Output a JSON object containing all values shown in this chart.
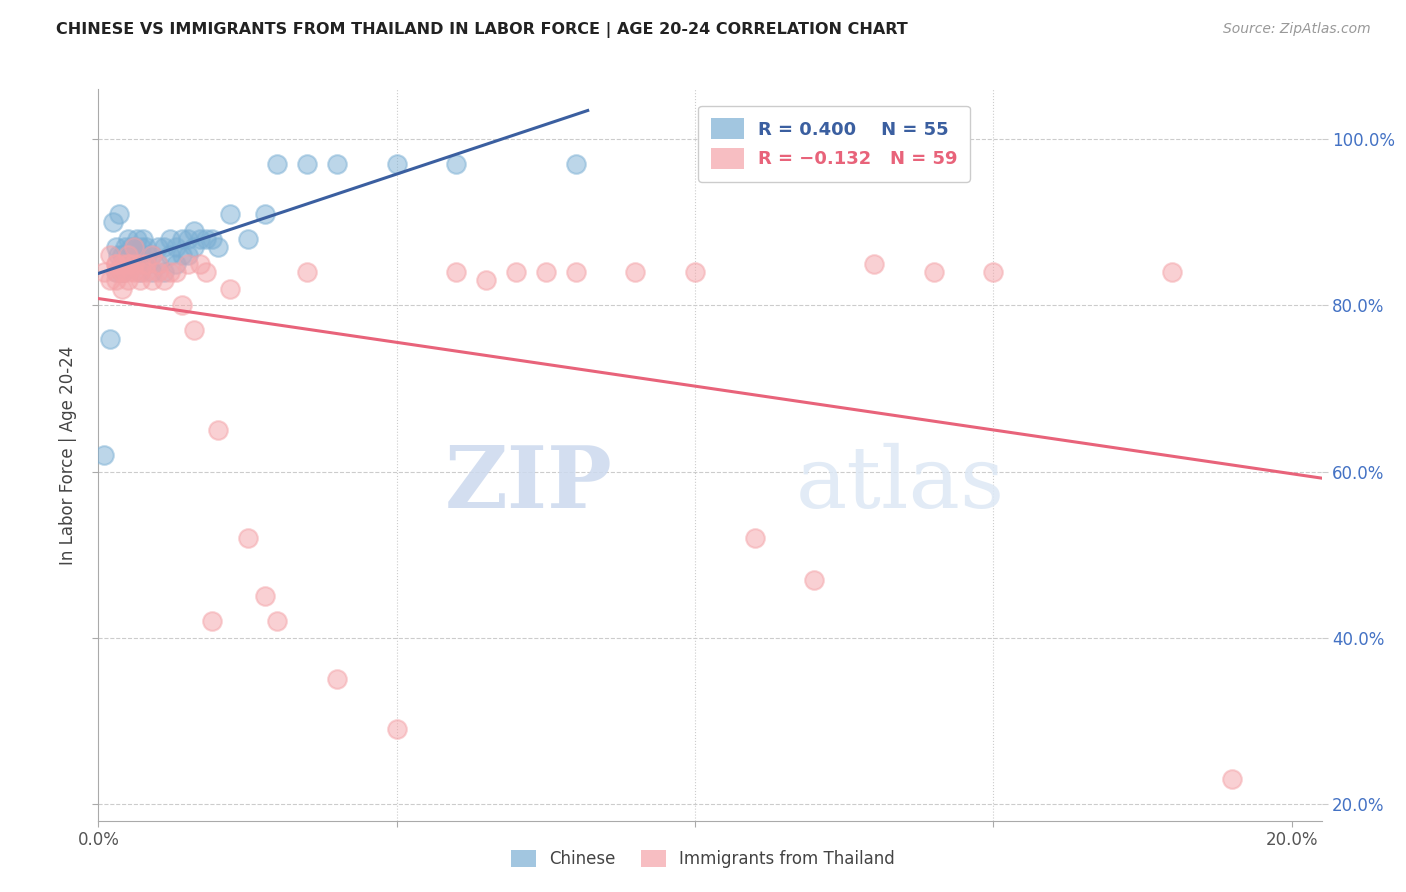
{
  "title": "CHINESE VS IMMIGRANTS FROM THAILAND IN LABOR FORCE | AGE 20-24 CORRELATION CHART",
  "source": "Source: ZipAtlas.com",
  "ylabel": "In Labor Force | Age 20-24",
  "right_ytick_labels": [
    "100.0%",
    "80.0%",
    "60.0%",
    "40.0%",
    "20.0%"
  ],
  "right_ytick_values": [
    1.0,
    0.8,
    0.6,
    0.4,
    0.2
  ],
  "xlim": [
    0.0,
    0.205
  ],
  "ylim": [
    0.18,
    1.06
  ],
  "legend_r_blue": "0.400",
  "legend_n_blue": "55",
  "legend_r_pink": "-0.132",
  "legend_n_pink": "59",
  "blue_color": "#7BAFD4",
  "pink_color": "#F4A3A8",
  "trend_blue_color": "#3B5FA0",
  "trend_pink_color": "#E8637A",
  "watermark_zip": "ZIP",
  "watermark_atlas": "atlas",
  "chinese_x": [
    0.001,
    0.002,
    0.0025,
    0.003,
    0.003,
    0.0032,
    0.0035,
    0.004,
    0.004,
    0.0042,
    0.0045,
    0.005,
    0.005,
    0.0052,
    0.0055,
    0.006,
    0.006,
    0.0062,
    0.0065,
    0.007,
    0.007,
    0.0072,
    0.0075,
    0.008,
    0.008,
    0.0082,
    0.009,
    0.009,
    0.01,
    0.01,
    0.011,
    0.011,
    0.012,
    0.012,
    0.013,
    0.013,
    0.014,
    0.014,
    0.015,
    0.015,
    0.016,
    0.016,
    0.017,
    0.018,
    0.019,
    0.02,
    0.022,
    0.025,
    0.028,
    0.03,
    0.035,
    0.04,
    0.05,
    0.06,
    0.08
  ],
  "chinese_y": [
    0.62,
    0.76,
    0.9,
    0.84,
    0.87,
    0.86,
    0.91,
    0.84,
    0.86,
    0.84,
    0.87,
    0.85,
    0.88,
    0.85,
    0.87,
    0.85,
    0.87,
    0.86,
    0.88,
    0.84,
    0.86,
    0.87,
    0.88,
    0.85,
    0.87,
    0.86,
    0.84,
    0.86,
    0.85,
    0.87,
    0.84,
    0.87,
    0.86,
    0.88,
    0.85,
    0.87,
    0.86,
    0.88,
    0.86,
    0.88,
    0.87,
    0.89,
    0.88,
    0.88,
    0.88,
    0.87,
    0.91,
    0.88,
    0.91,
    0.97,
    0.97,
    0.97,
    0.97,
    0.97,
    0.97
  ],
  "thailand_x": [
    0.001,
    0.002,
    0.002,
    0.003,
    0.003,
    0.003,
    0.003,
    0.004,
    0.004,
    0.004,
    0.004,
    0.005,
    0.005,
    0.005,
    0.005,
    0.005,
    0.006,
    0.006,
    0.006,
    0.007,
    0.007,
    0.007,
    0.008,
    0.008,
    0.009,
    0.009,
    0.01,
    0.01,
    0.011,
    0.012,
    0.013,
    0.014,
    0.015,
    0.016,
    0.017,
    0.018,
    0.019,
    0.02,
    0.022,
    0.025,
    0.028,
    0.03,
    0.035,
    0.04,
    0.05,
    0.06,
    0.065,
    0.07,
    0.075,
    0.08,
    0.09,
    0.1,
    0.11,
    0.12,
    0.13,
    0.14,
    0.15,
    0.18,
    0.19
  ],
  "thailand_y": [
    0.84,
    0.83,
    0.86,
    0.84,
    0.85,
    0.83,
    0.85,
    0.82,
    0.85,
    0.84,
    0.84,
    0.84,
    0.85,
    0.86,
    0.83,
    0.85,
    0.84,
    0.85,
    0.87,
    0.84,
    0.85,
    0.83,
    0.85,
    0.84,
    0.83,
    0.86,
    0.84,
    0.85,
    0.83,
    0.84,
    0.84,
    0.8,
    0.85,
    0.77,
    0.85,
    0.84,
    0.42,
    0.65,
    0.82,
    0.52,
    0.45,
    0.42,
    0.84,
    0.35,
    0.29,
    0.84,
    0.83,
    0.84,
    0.84,
    0.84,
    0.84,
    0.84,
    0.52,
    0.47,
    0.85,
    0.84,
    0.84,
    0.84,
    0.23
  ]
}
